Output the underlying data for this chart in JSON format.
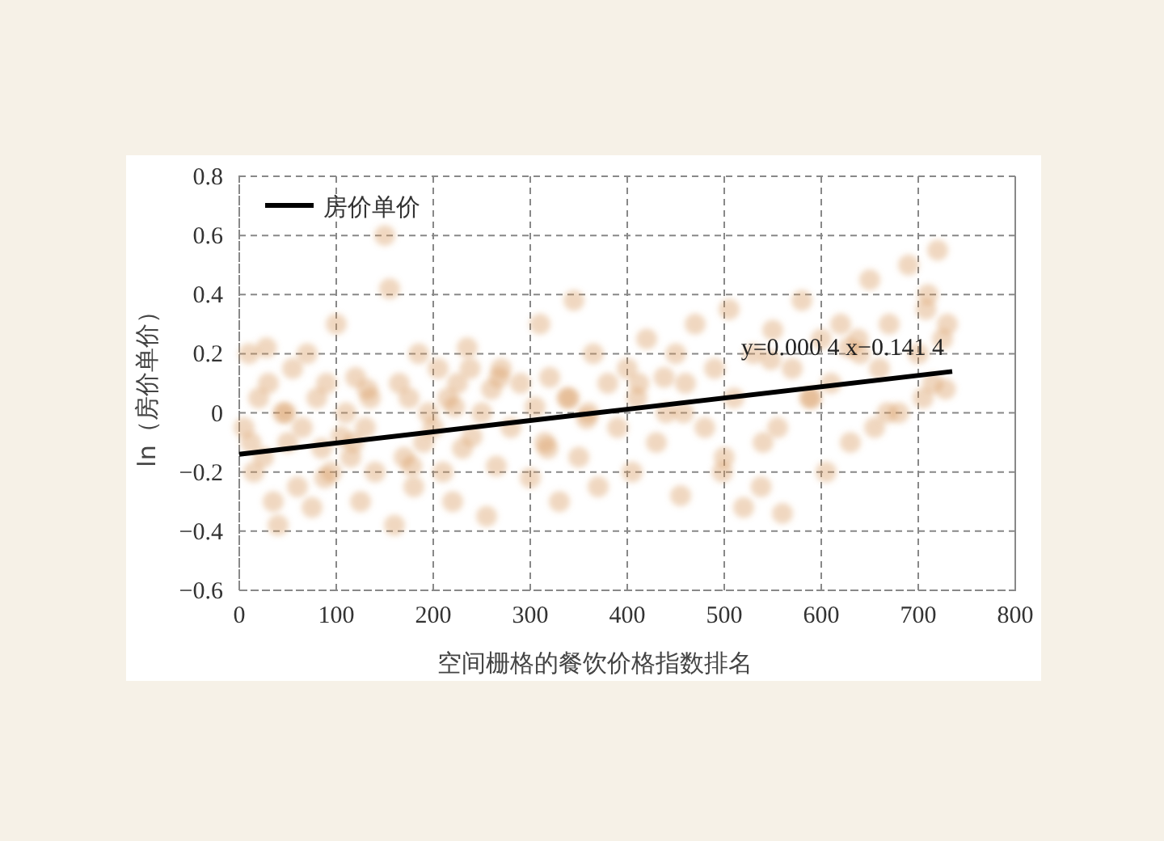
{
  "chart_data": {
    "type": "scatter",
    "xlabel": "空间栅格的餐饮价格指数排名",
    "ylabel": "ln（房价单价）",
    "xlim": [
      0,
      800
    ],
    "xticks": [
      0,
      100,
      200,
      300,
      400,
      500,
      600,
      700,
      800
    ],
    "ylim": [
      -0.6,
      0.8
    ],
    "yticks": [
      {
        "value": -0.6,
        "label": "−0.6"
      },
      {
        "value": -0.4,
        "label": "−0.4"
      },
      {
        "value": -0.2,
        "label": "−0.2"
      },
      0,
      0.2,
      0.4,
      0.6,
      0.8
    ],
    "grid": true,
    "legend": "top left",
    "annotations": [
      "y=0.000 4 x−0.141 4"
    ],
    "series": [
      {
        "marker": "circle",
        "color": "#d8955a",
        "x": [
          5,
          10,
          15,
          20,
          25,
          30,
          35,
          40,
          45,
          50,
          55,
          60,
          65,
          70,
          75,
          80,
          85,
          90,
          95,
          100,
          105,
          110,
          115,
          120,
          125,
          130,
          135,
          140,
          150,
          155,
          160,
          165,
          170,
          175,
          180,
          185,
          190,
          195,
          200,
          205,
          210,
          215,
          220,
          225,
          230,
          235,
          240,
          250,
          255,
          260,
          265,
          270,
          280,
          290,
          300,
          305,
          310,
          315,
          320,
          330,
          340,
          345,
          350,
          360,
          365,
          370,
          380,
          390,
          400,
          405,
          410,
          420,
          430,
          440,
          450,
          455,
          460,
          470,
          480,
          490,
          500,
          505,
          510,
          520,
          530,
          540,
          550,
          555,
          560,
          570,
          580,
          590,
          600,
          605,
          610,
          620,
          630,
          640,
          650,
          655,
          660,
          670,
          680,
          690,
          700,
          705,
          710,
          715,
          720,
          725,
          730,
          12,
          48,
          88,
          132,
          178,
          222,
          268,
          318,
          358,
          412,
          458,
          498,
          548,
          588,
          628,
          668,
          708,
          28,
          118,
          238,
          338,
          438,
          538,
          638,
          728
        ],
        "values": [
          -0.05,
          0.2,
          -0.2,
          0.05,
          -0.15,
          0.1,
          -0.3,
          -0.38,
          0.0,
          -0.1,
          0.15,
          -0.25,
          -0.05,
          0.2,
          -0.32,
          0.05,
          -0.12,
          0.1,
          -0.2,
          0.3,
          -0.08,
          0.0,
          -0.15,
          0.12,
          -0.3,
          -0.05,
          0.05,
          -0.2,
          0.6,
          0.42,
          -0.38,
          0.1,
          -0.15,
          0.05,
          -0.25,
          0.2,
          -0.1,
          0.0,
          -0.05,
          0.15,
          -0.2,
          0.05,
          -0.3,
          0.1,
          -0.12,
          0.22,
          -0.08,
          0.0,
          -0.35,
          0.08,
          -0.18,
          0.15,
          -0.05,
          0.1,
          -0.22,
          0.02,
          0.3,
          -0.1,
          0.12,
          -0.3,
          0.05,
          0.38,
          -0.15,
          0.0,
          0.2,
          -0.25,
          0.1,
          -0.05,
          0.15,
          -0.2,
          0.05,
          0.25,
          -0.1,
          0.0,
          0.2,
          -0.28,
          0.1,
          0.3,
          -0.05,
          0.15,
          -0.15,
          0.35,
          0.05,
          -0.32,
          0.2,
          -0.1,
          0.28,
          -0.05,
          -0.34,
          0.15,
          0.38,
          0.05,
          0.25,
          -0.2,
          0.1,
          0.3,
          -0.1,
          0.2,
          0.45,
          -0.05,
          0.15,
          0.3,
          0.0,
          0.5,
          0.2,
          0.05,
          0.4,
          0.1,
          0.55,
          0.25,
          0.3,
          -0.1,
          0.0,
          -0.22,
          0.08,
          -0.18,
          0.02,
          0.12,
          -0.12,
          -0.02,
          0.1,
          0.0,
          -0.2,
          0.18,
          0.05,
          0.22,
          0.0,
          0.35,
          0.22,
          -0.1,
          0.15,
          0.05,
          0.12,
          -0.25,
          0.25,
          0.08
        ]
      },
      {
        "type": "line",
        "name": "房价单价",
        "color": "#000000",
        "x": [
          0,
          735
        ],
        "values": [
          -0.14,
          0.14
        ]
      }
    ]
  }
}
